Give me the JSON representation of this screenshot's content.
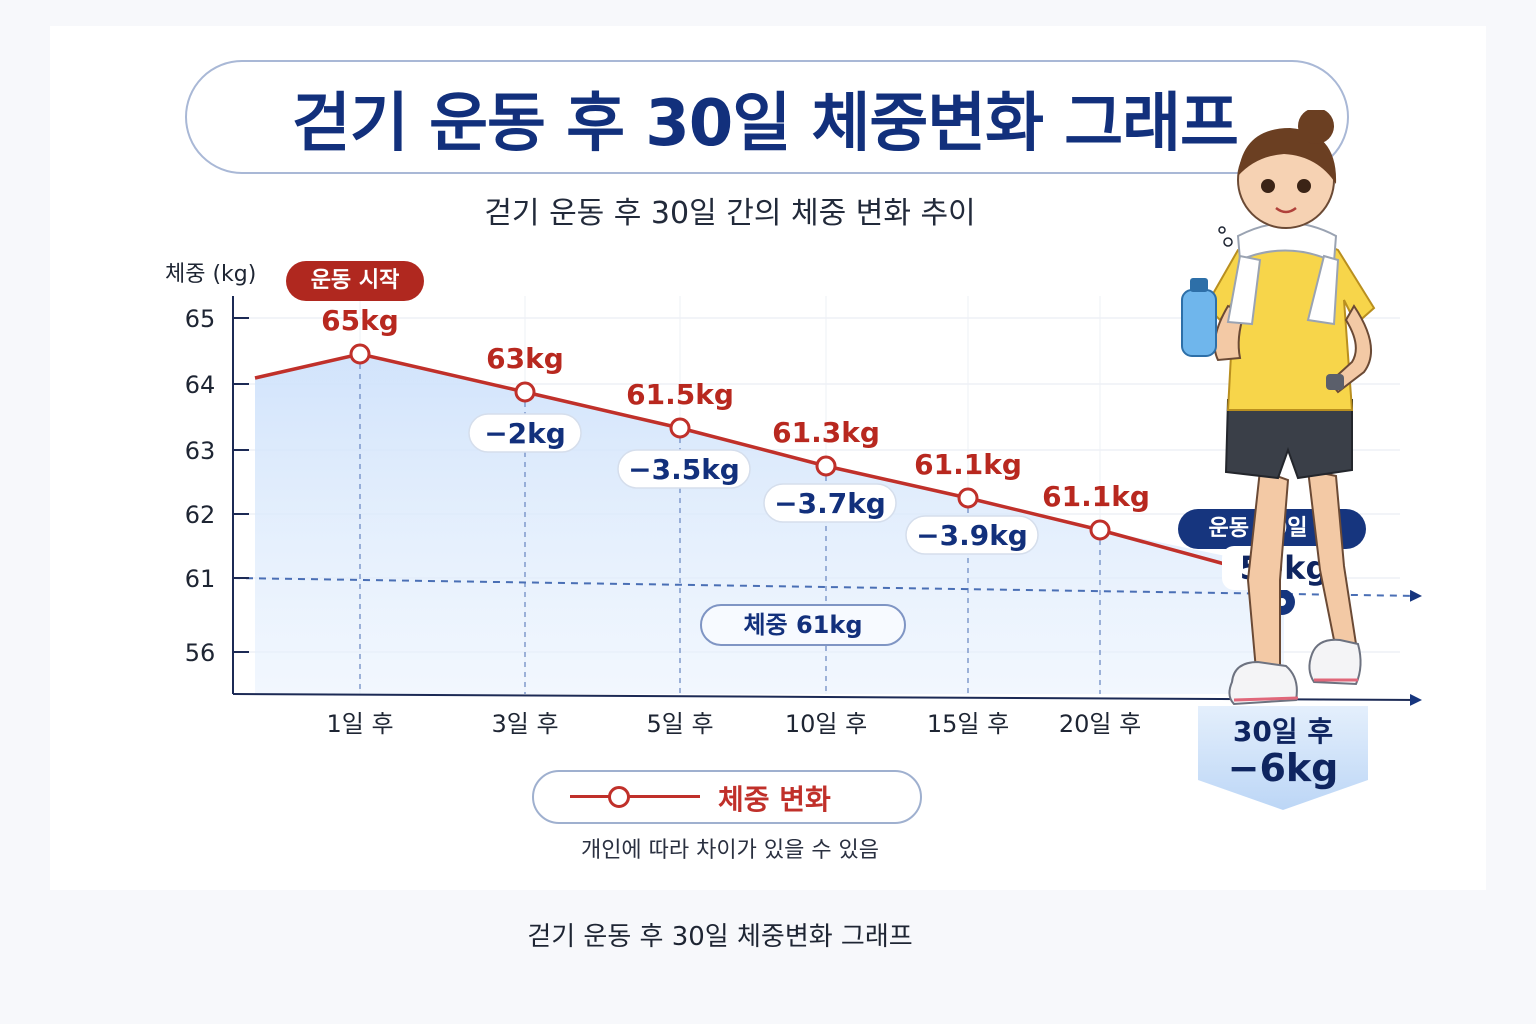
{
  "title": "걷기 운동 후 30일 체중변화 그래프",
  "subtitle": "걷기 운동 후 30일 간의 체중 변화 추이",
  "caption": "걷기 운동 후 30일 체중변화 그래프",
  "footnote": "개인에 따라 차이가 있을 수 있음",
  "legend": {
    "label": "체중 변화"
  },
  "badges": {
    "start": "운동 시작",
    "end": "운동 30일 후",
    "reference": "체중 61kg"
  },
  "final": {
    "value_label": "59kg",
    "day_label": "30일 후",
    "change_label": "−6kg"
  },
  "colors": {
    "series": "#c0302a",
    "accent_navy": "#12307c",
    "fill": "#cfe2fb",
    "badge_red": "#b0281f"
  },
  "icons": [
    "walking-woman-illustration",
    "water-bottle-icon",
    "towel-icon"
  ],
  "chart_data": {
    "type": "line",
    "title": "걷기 운동 후 30일 체중변화 그래프",
    "ylabel": "체중 (kg)",
    "xlabel": "",
    "y_ticks": [
      "56",
      "61",
      "62",
      "63",
      "64",
      "65"
    ],
    "categories": [
      "1일 후",
      "3일 후",
      "5일 후",
      "10일 후",
      "15일 후",
      "20일 후",
      "30일 후"
    ],
    "series": [
      {
        "name": "체중 변화",
        "values": [
          65,
          63,
          61.5,
          61.3,
          61.1,
          61.1,
          59
        ],
        "value_labels": [
          "65kg",
          "63kg",
          "61.5kg",
          "61.3kg",
          "61.1kg",
          "61.1kg",
          "59kg"
        ],
        "change_labels": [
          "",
          "−2kg",
          "−3.5kg",
          "−3.7kg",
          "−3.9kg",
          "",
          "−6kg"
        ]
      }
    ],
    "reference_line": {
      "value": 61,
      "label": "체중 61kg"
    },
    "grid": true,
    "legend_position": "bottom-center"
  }
}
